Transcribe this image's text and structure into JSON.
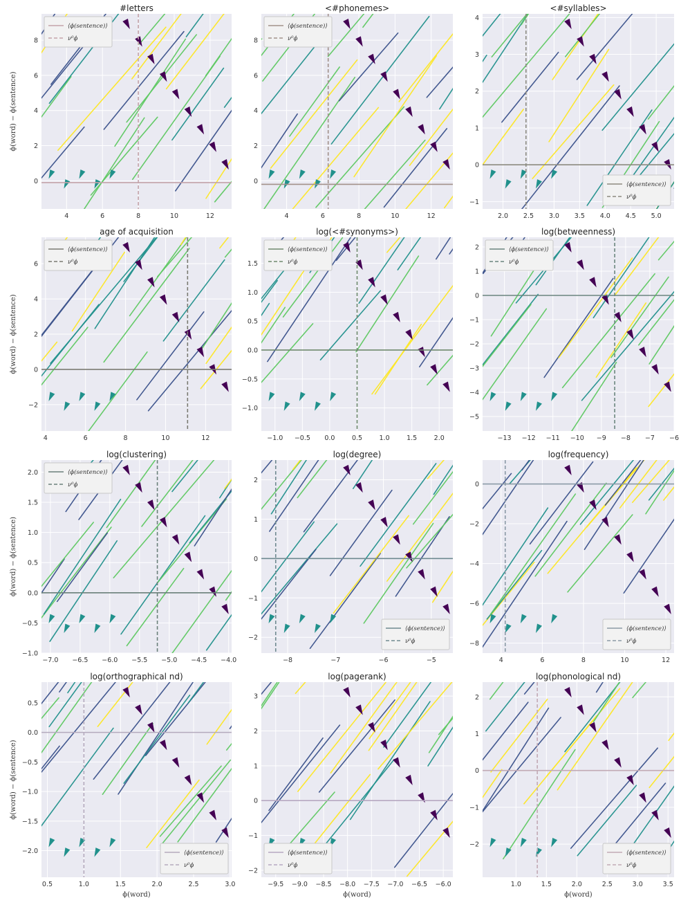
{
  "figure": {
    "ylabel": "ϕ(word) − ϕ(sentence)",
    "xlabel": "ϕ(word)",
    "legend_mean": "⟨ϕ(sentence)⟩",
    "legend_nu": "ν⁰ϕ",
    "colors": {
      "background": "#eaeaf2",
      "grid": "#ffffff",
      "viridis": [
        "#440154",
        "#3b528b",
        "#21918c",
        "#5ec962",
        "#fde725"
      ]
    }
  },
  "chart_data": [
    {
      "type": "streamplot",
      "title": "#letters",
      "xlim": [
        2.6,
        13.2
      ],
      "ylim": [
        -1.6,
        9.5
      ],
      "xticks": [
        4,
        6,
        8,
        10,
        12
      ],
      "yticks": [
        0,
        2,
        4,
        6,
        8
      ],
      "hline": -0.1,
      "vline": 8.0,
      "ref_color": "#c4a3a9",
      "legend": "top-left",
      "xlabel": "",
      "ylabel": "ϕ(word) − ϕ(sentence)"
    },
    {
      "type": "streamplot",
      "title": "<#phonemes>",
      "xlim": [
        2.6,
        13.2
      ],
      "ylim": [
        -1.6,
        9.5
      ],
      "xticks": [
        4,
        6,
        8,
        10,
        12
      ],
      "yticks": [
        0,
        2,
        4,
        6,
        8
      ],
      "hline": -0.2,
      "vline": 6.3,
      "ref_color": "#a2918a",
      "legend": "top-left",
      "xlabel": "",
      "ylabel": ""
    },
    {
      "type": "streamplot",
      "title": "<#syllables>",
      "xlim": [
        1.6,
        5.35
      ],
      "ylim": [
        -1.2,
        4.1
      ],
      "xticks": [
        2.0,
        2.5,
        3.0,
        3.5,
        4.0,
        4.5,
        5.0
      ],
      "yticks": [
        -1,
        0,
        1,
        2,
        3,
        4
      ],
      "hline": 0.0,
      "vline": 2.45,
      "ref_color": "#8c8a80",
      "legend": "bottom-right",
      "xlabel": "",
      "ylabel": ""
    },
    {
      "type": "streamplot",
      "title": "age of acquisition",
      "xlim": [
        3.8,
        13.3
      ],
      "ylim": [
        -3.5,
        7.5
      ],
      "xticks": [
        4,
        6,
        8,
        10,
        12
      ],
      "yticks": [
        -2,
        0,
        2,
        4,
        6
      ],
      "hline": 0.0,
      "vline": 11.1,
      "ref_color": "#7b7b72",
      "legend": "top-left",
      "xlabel": "",
      "ylabel": "ϕ(word) − ϕ(sentence)"
    },
    {
      "type": "streamplot",
      "title": "log(<#synonyms>)",
      "xlim": [
        -1.25,
        2.25
      ],
      "ylim": [
        -1.4,
        1.95
      ],
      "xticks": [
        -1.0,
        -0.5,
        0.0,
        0.5,
        1.0,
        1.5,
        2.0
      ],
      "yticks": [
        -1.0,
        -0.5,
        0.0,
        0.5,
        1.0,
        1.5
      ],
      "hline": 0.0,
      "vline": 0.5,
      "ref_color": "#6f8a6e",
      "legend": "top-left",
      "xlabel": "",
      "ylabel": ""
    },
    {
      "type": "streamplot",
      "title": "log(betweenness)",
      "xlim": [
        -13.9,
        -6.0
      ],
      "ylim": [
        -5.6,
        2.4
      ],
      "xticks": [
        -13,
        -12,
        -11,
        -10,
        -9,
        -8,
        -7,
        -6
      ],
      "yticks": [
        -5,
        -4,
        -3,
        -2,
        -1,
        0,
        1,
        2
      ],
      "hline": 0.0,
      "vline": -8.45,
      "ref_color": "#6b857e",
      "legend": "top-left",
      "xlabel": "",
      "ylabel": ""
    },
    {
      "type": "streamplot",
      "title": "log(clustering)",
      "xlim": [
        -7.15,
        -3.95
      ],
      "ylim": [
        -1.0,
        2.2
      ],
      "xticks": [
        -7.0,
        -6.5,
        -6.0,
        -5.5,
        -5.0,
        -4.5,
        -4.0
      ],
      "yticks": [
        -1.0,
        -0.5,
        0.0,
        0.5,
        1.0,
        1.5,
        2.0
      ],
      "hline": 0.0,
      "vline": -5.2,
      "ref_color": "#6a807a",
      "legend": "top-left",
      "xlabel": "",
      "ylabel": "ϕ(word) − ϕ(sentence)"
    },
    {
      "type": "streamplot",
      "title": "log(degree)",
      "xlim": [
        -8.55,
        -4.55
      ],
      "ylim": [
        -2.4,
        2.5
      ],
      "xticks": [
        -8,
        -7,
        -6,
        -5
      ],
      "yticks": [
        -2,
        -1,
        0,
        1,
        2
      ],
      "hline": 0.0,
      "vline": -8.25,
      "ref_color": "#6f8990",
      "legend": "bottom-right",
      "xlabel": "",
      "ylabel": ""
    },
    {
      "type": "streamplot",
      "title": "log(frequency)",
      "xlim": [
        3.1,
        12.4
      ],
      "ylim": [
        -8.5,
        1.2
      ],
      "xticks": [
        4,
        6,
        8,
        10,
        12
      ],
      "yticks": [
        -8,
        -6,
        -4,
        -2,
        0
      ],
      "hline": 0.0,
      "vline": 4.2,
      "ref_color": "#8b9aa6",
      "legend": "bottom-right",
      "xlabel": "",
      "ylabel": ""
    },
    {
      "type": "streamplot",
      "title": "log(orthographical nd)",
      "xlim": [
        0.42,
        3.02
      ],
      "ylim": [
        -2.45,
        0.85
      ],
      "xticks": [
        0.5,
        1.0,
        1.5,
        2.0,
        2.5,
        3.0
      ],
      "yticks": [
        -2.0,
        -1.5,
        -1.0,
        -0.5,
        0.0,
        0.5
      ],
      "hline": 0.0,
      "vline": 1.0,
      "ref_color": "#b4aabd",
      "legend": "bottom-right",
      "xlabel": "ϕ(word)",
      "ylabel": "ϕ(word) − ϕ(sentence)"
    },
    {
      "type": "streamplot",
      "title": "log(pagerank)",
      "xlim": [
        -9.8,
        -5.8
      ],
      "ylim": [
        -2.2,
        3.4
      ],
      "xticks": [
        -9.5,
        -9.0,
        -8.5,
        -8.0,
        -7.5,
        -7.0,
        -6.5,
        -6.0
      ],
      "yticks": [
        -2,
        -1,
        0,
        1,
        2,
        3
      ],
      "hline": 0.0,
      "vline": null,
      "ref_color": "#b6a8c1",
      "legend": "bottom-left",
      "xlabel": "ϕ(word)",
      "ylabel": ""
    },
    {
      "type": "streamplot",
      "title": "log(phonological nd)",
      "xlim": [
        0.45,
        3.6
      ],
      "ylim": [
        -2.9,
        2.4
      ],
      "xticks": [
        1.0,
        1.5,
        2.0,
        2.5,
        3.0,
        3.5
      ],
      "yticks": [
        -2,
        -1,
        0,
        1,
        2
      ],
      "hline": 0.0,
      "vline": 1.35,
      "ref_color": "#c2a9b4",
      "legend": "bottom-right",
      "xlabel": "ϕ(word)",
      "ylabel": ""
    }
  ]
}
